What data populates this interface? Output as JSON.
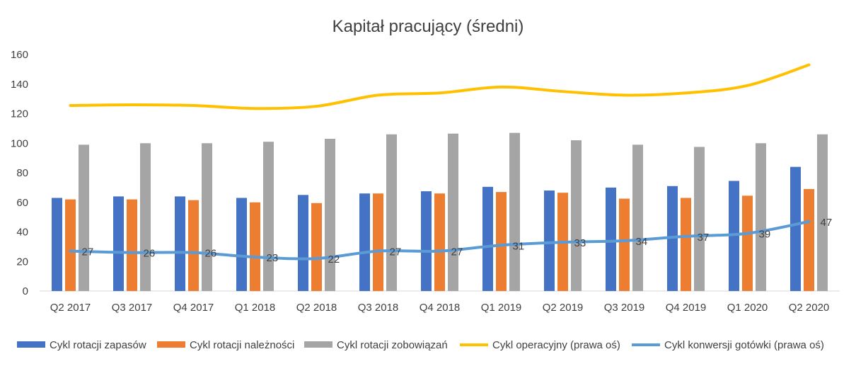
{
  "chart_data": {
    "type": "bar",
    "title": "Kapitał pracujący (średni)",
    "categories": [
      "Q2 2017",
      "Q3 2017",
      "Q4 2017",
      "Q1 2018",
      "Q2 2018",
      "Q3 2018",
      "Q4 2018",
      "Q1 2019",
      "Q2 2019",
      "Q3 2019",
      "Q4 2019",
      "Q1 2020",
      "Q2 2020"
    ],
    "ylim": [
      0,
      160
    ],
    "yticks": [
      "0",
      "20",
      "40",
      "60",
      "80",
      "100",
      "120",
      "140",
      "160"
    ],
    "grid": false,
    "legend_position": "bottom",
    "series": [
      {
        "name": "Cykl rotacji zapasów",
        "type": "bar",
        "color": "#4472C4",
        "values": [
          63,
          64,
          64,
          63,
          65,
          66,
          67.5,
          70.5,
          68,
          70,
          71,
          74.5,
          84
        ]
      },
      {
        "name": "Cykl rotacji należności",
        "type": "bar",
        "color": "#ED7D31",
        "values": [
          62,
          62,
          61.5,
          60,
          59.5,
          66,
          66,
          67,
          66.5,
          62.5,
          63,
          64.5,
          69
        ]
      },
      {
        "name": "Cykl rotacji zobowiązań",
        "type": "bar",
        "color": "#A5A5A5",
        "values": [
          99,
          100,
          100,
          101,
          103,
          106,
          106.5,
          107,
          102,
          99,
          97.5,
          100,
          106
        ]
      },
      {
        "name": "Cykl operacyjny (prawa oś)",
        "type": "line",
        "color": "#FFC000",
        "values": [
          125.5,
          126,
          125.5,
          123.5,
          125,
          132.5,
          134,
          138,
          135,
          132.5,
          134,
          139,
          153
        ]
      },
      {
        "name": "Cykl konwersji gotówki (prawa oś)",
        "type": "line",
        "color": "#5B9BD5",
        "values": [
          27,
          26,
          26,
          23,
          22,
          27,
          27,
          31,
          33,
          34,
          37,
          39,
          47
        ],
        "data_labels": [
          "27",
          "26",
          "26",
          "23",
          "22",
          "27",
          "27",
          "31",
          "33",
          "34",
          "37",
          "39",
          "47"
        ]
      }
    ]
  }
}
